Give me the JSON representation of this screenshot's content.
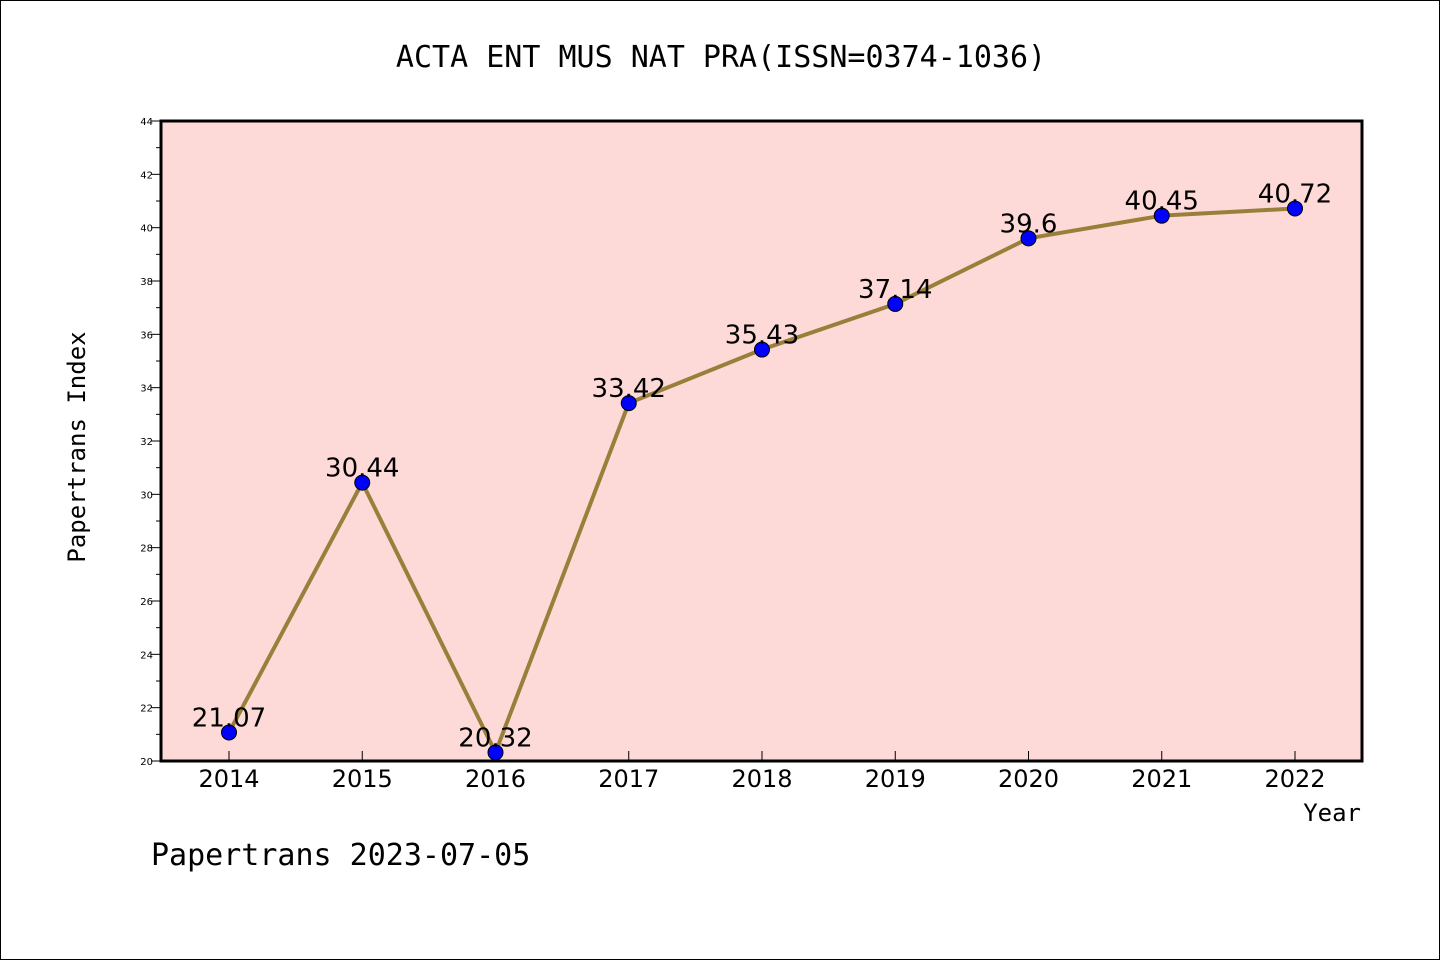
{
  "chart_data": {
    "type": "line",
    "title": "ACTA ENT MUS NAT PRA(ISSN=0374-1036)",
    "xlabel": "Year",
    "ylabel": "Papertrans Index",
    "categories": [
      "2014",
      "2015",
      "2016",
      "2017",
      "2018",
      "2019",
      "2020",
      "2021",
      "2022"
    ],
    "series": [
      {
        "values": [
          21.07,
          30.44,
          20.32,
          33.42,
          35.43,
          37.14,
          39.6,
          40.45,
          40.72
        ],
        "labels": [
          "21.07",
          "30.44",
          "20.32",
          "33.42",
          "35.43",
          "37.14",
          "39.6",
          "40.45",
          "40.72"
        ]
      }
    ],
    "ylim": [
      20,
      44
    ],
    "yticks": [
      20,
      22,
      24,
      26,
      28,
      30,
      32,
      34,
      36,
      38,
      40,
      42,
      44
    ],
    "grid": false,
    "colors": {
      "plot_background": "#fddad8",
      "line": "#9a7f3a",
      "marker": "#0000ff"
    }
  },
  "footer": "Papertrans 2023-07-05"
}
